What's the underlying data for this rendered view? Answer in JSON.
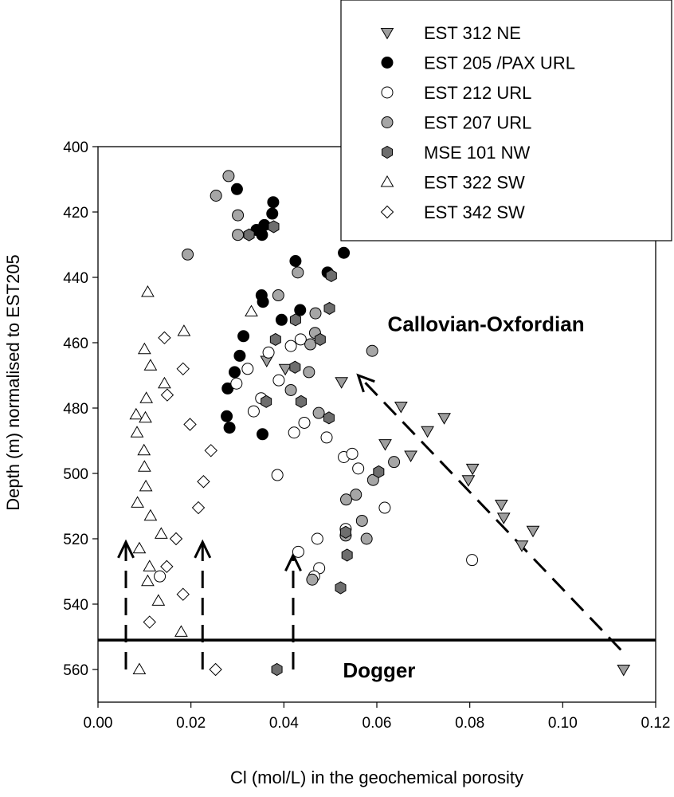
{
  "chart_data": {
    "type": "scatter",
    "xlabel": "Cl (mol/L) in the geochemical porosity",
    "ylabel": "Depth (m) normalised to EST205",
    "xlim": [
      0.0,
      0.12
    ],
    "ylim": [
      400,
      570
    ],
    "y_inverted": true,
    "xticks": [
      "0.00",
      "0.02",
      "0.04",
      "0.06",
      "0.08",
      "0.10",
      "0.12"
    ],
    "yticks": [
      "400",
      "420",
      "440",
      "460",
      "480",
      "500",
      "520",
      "540",
      "560"
    ],
    "legend_position": "top-right",
    "annotations": [
      {
        "text": "Callovian-Oxfordian",
        "x": 0.0835,
        "y": 455
      },
      {
        "text": "Dogger",
        "x": 0.0605,
        "y": 560
      }
    ],
    "boundary_line": {
      "label": "Callovian-Oxfordian / Dogger boundary",
      "depth": 551
    },
    "trend_arrows": [
      {
        "from": [
          0.006,
          560
        ],
        "to": [
          0.006,
          521
        ]
      },
      {
        "from": [
          0.0225,
          560
        ],
        "to": [
          0.0225,
          521
        ]
      },
      {
        "from": [
          0.042,
          560
        ],
        "to": [
          0.042,
          525
        ]
      },
      {
        "from": [
          0.1125,
          554
        ],
        "to": [
          0.056,
          470
        ]
      }
    ],
    "series": [
      {
        "name": "EST 312 NE",
        "marker": "triangle-down",
        "fill": "#9e9e9e",
        "points": [
          [
            0.0363,
            465.5
          ],
          [
            0.0403,
            468
          ],
          [
            0.0524,
            472
          ],
          [
            0.0652,
            479.5
          ],
          [
            0.0745,
            483
          ],
          [
            0.0709,
            487
          ],
          [
            0.0618,
            491
          ],
          [
            0.0673,
            494.5
          ],
          [
            0.0806,
            498.5
          ],
          [
            0.0797,
            502
          ],
          [
            0.0868,
            509.5
          ],
          [
            0.0873,
            513.5
          ],
          [
            0.0936,
            517.5
          ],
          [
            0.0912,
            522
          ],
          [
            0.1131,
            560
          ]
        ]
      },
      {
        "name": "EST 205 /PAX URL",
        "marker": "circle",
        "fill": "#000000",
        "points": [
          [
            0.0299,
            413
          ],
          [
            0.0377,
            417
          ],
          [
            0.0375,
            420.5
          ],
          [
            0.0358,
            424
          ],
          [
            0.0341,
            425.5
          ],
          [
            0.0353,
            427
          ],
          [
            0.0529,
            432.5
          ],
          [
            0.0425,
            435
          ],
          [
            0.0494,
            438.5
          ],
          [
            0.0352,
            445.5
          ],
          [
            0.0355,
            447.5
          ],
          [
            0.0435,
            450
          ],
          [
            0.0395,
            453
          ],
          [
            0.0313,
            458
          ],
          [
            0.0305,
            464
          ],
          [
            0.0294,
            469
          ],
          [
            0.0279,
            474
          ],
          [
            0.0277,
            482.5
          ],
          [
            0.0283,
            486
          ],
          [
            0.0354,
            488
          ]
        ]
      },
      {
        "name": "EST 212 URL",
        "marker": "circle",
        "fill": "#ffffff",
        "points": [
          [
            0.0367,
            463
          ],
          [
            0.0415,
            461
          ],
          [
            0.0436,
            459
          ],
          [
            0.0322,
            468
          ],
          [
            0.0389,
            471.5
          ],
          [
            0.0298,
            472.5
          ],
          [
            0.0351,
            477
          ],
          [
            0.0335,
            481
          ],
          [
            0.0444,
            484.5
          ],
          [
            0.0422,
            487.5
          ],
          [
            0.0492,
            489
          ],
          [
            0.0529,
            495
          ],
          [
            0.0547,
            494
          ],
          [
            0.056,
            498.5
          ],
          [
            0.0386,
            500.5
          ],
          [
            0.0617,
            510.5
          ],
          [
            0.0533,
            517
          ],
          [
            0.0472,
            520
          ],
          [
            0.0431,
            524
          ],
          [
            0.0476,
            529
          ],
          [
            0.0465,
            531.5
          ],
          [
            0.0133,
            531.5
          ],
          [
            0.0805,
            526.5
          ]
        ]
      },
      {
        "name": "EST 207 URL",
        "marker": "circle",
        "fill": "#a6a6a6",
        "points": [
          [
            0.0281,
            409
          ],
          [
            0.0254,
            415
          ],
          [
            0.0301,
            421
          ],
          [
            0.0301,
            427
          ],
          [
            0.0193,
            433
          ],
          [
            0.043,
            438.5
          ],
          [
            0.0388,
            445.5
          ],
          [
            0.0468,
            451
          ],
          [
            0.0467,
            457
          ],
          [
            0.0457,
            460.5
          ],
          [
            0.0454,
            469
          ],
          [
            0.0415,
            474.5
          ],
          [
            0.059,
            462.5
          ],
          [
            0.0475,
            481.5
          ],
          [
            0.0637,
            496.5
          ],
          [
            0.0592,
            502
          ],
          [
            0.0555,
            506.5
          ],
          [
            0.0534,
            508
          ],
          [
            0.0568,
            514.5
          ],
          [
            0.0533,
            519
          ],
          [
            0.0578,
            520
          ],
          [
            0.0461,
            532.5
          ]
        ]
      },
      {
        "name": "MSE 101 NW",
        "marker": "hexagon",
        "fill": "#6e6e6e",
        "points": [
          [
            0.0325,
            427
          ],
          [
            0.0378,
            424.5
          ],
          [
            0.0502,
            439.5
          ],
          [
            0.0498,
            449.5
          ],
          [
            0.0425,
            453
          ],
          [
            0.0478,
            459
          ],
          [
            0.0382,
            459
          ],
          [
            0.0424,
            467.5
          ],
          [
            0.0362,
            478
          ],
          [
            0.0437,
            478
          ],
          [
            0.0497,
            483
          ],
          [
            0.0604,
            499.5
          ],
          [
            0.0533,
            518
          ],
          [
            0.0536,
            525
          ],
          [
            0.0522,
            535
          ],
          [
            0.0385,
            560
          ]
        ]
      },
      {
        "name": "EST 322 SW",
        "marker": "triangle-up",
        "fill": "#ffffff",
        "points": [
          [
            0.033,
            450.5
          ],
          [
            0.0107,
            444.5
          ],
          [
            0.0185,
            456.5
          ],
          [
            0.01,
            462
          ],
          [
            0.0113,
            467
          ],
          [
            0.0143,
            472.5
          ],
          [
            0.0104,
            477
          ],
          [
            0.0082,
            482
          ],
          [
            0.0102,
            483
          ],
          [
            0.0084,
            487.5
          ],
          [
            0.0099,
            493
          ],
          [
            0.01,
            498
          ],
          [
            0.0103,
            504
          ],
          [
            0.0085,
            509
          ],
          [
            0.0113,
            513
          ],
          [
            0.0136,
            518.5
          ],
          [
            0.0089,
            523
          ],
          [
            0.0111,
            528.5
          ],
          [
            0.0107,
            533
          ],
          [
            0.013,
            539
          ],
          [
            0.0179,
            548.5
          ],
          [
            0.0089,
            560
          ]
        ]
      },
      {
        "name": "EST 342 SW",
        "marker": "diamond",
        "fill": "#ffffff",
        "points": [
          [
            0.0143,
            458.5
          ],
          [
            0.0183,
            468
          ],
          [
            0.0149,
            476
          ],
          [
            0.0198,
            485
          ],
          [
            0.0243,
            493
          ],
          [
            0.0227,
            502.5
          ],
          [
            0.0216,
            510.5
          ],
          [
            0.0168,
            520
          ],
          [
            0.0148,
            528.5
          ],
          [
            0.0183,
            537
          ],
          [
            0.0111,
            545.5
          ],
          [
            0.0253,
            560
          ]
        ]
      }
    ]
  }
}
